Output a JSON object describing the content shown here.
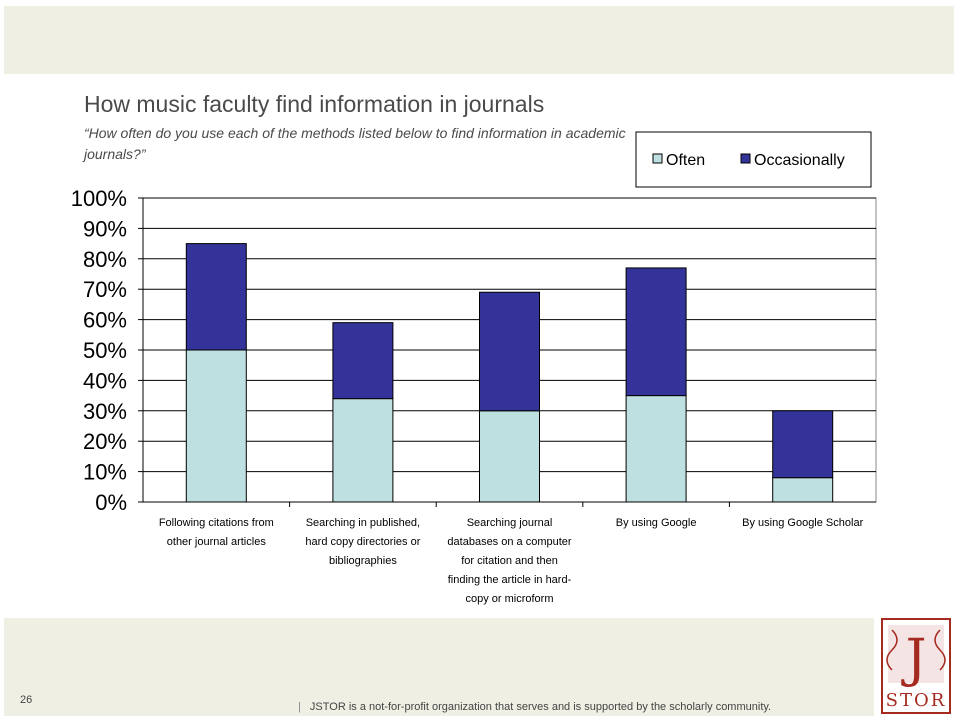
{
  "header": {
    "title": "How music faculty find information in journals",
    "subtitle": "“How often do you use each of the methods listed below to find information in academic journals?”"
  },
  "chart_data": {
    "type": "bar",
    "stacked": true,
    "categories": [
      "Following citations from other journal articles",
      "Searching in published, hard copy directories or bibliographies",
      "Searching journal databases on a computer for citation and then finding the article in hard-copy or microform",
      "By using Google",
      "By using Google Scholar"
    ],
    "category_lines": [
      [
        "Following citations from",
        "other journal articles"
      ],
      [
        "Searching in published,",
        "hard copy directories or",
        "bibliographies"
      ],
      [
        "Searching journal",
        "databases on a computer",
        "for citation and then",
        "finding the article in hard-",
        "copy or microform"
      ],
      [
        "By using Google"
      ],
      [
        "By using Google Scholar"
      ]
    ],
    "series": [
      {
        "name": "Often",
        "values": [
          50,
          34,
          30,
          35,
          8
        ],
        "color": "#bfe0e0"
      },
      {
        "name": "Occasionally",
        "values": [
          35,
          25,
          39,
          42,
          22
        ],
        "color": "#333399"
      }
    ],
    "ylim": [
      0,
      100
    ],
    "yticks": [
      "0%",
      "10%",
      "20%",
      "30%",
      "40%",
      "50%",
      "60%",
      "70%",
      "80%",
      "90%",
      "100%"
    ],
    "grid": true,
    "legend_position": "top-right"
  },
  "footer": {
    "page_number": "26",
    "separator": "|",
    "text": "JSTOR is a not-for-profit organization that serves and is supported by the scholarly community."
  },
  "logo": {
    "letter": "J",
    "text": "STOR",
    "color": "#a52a1f"
  }
}
